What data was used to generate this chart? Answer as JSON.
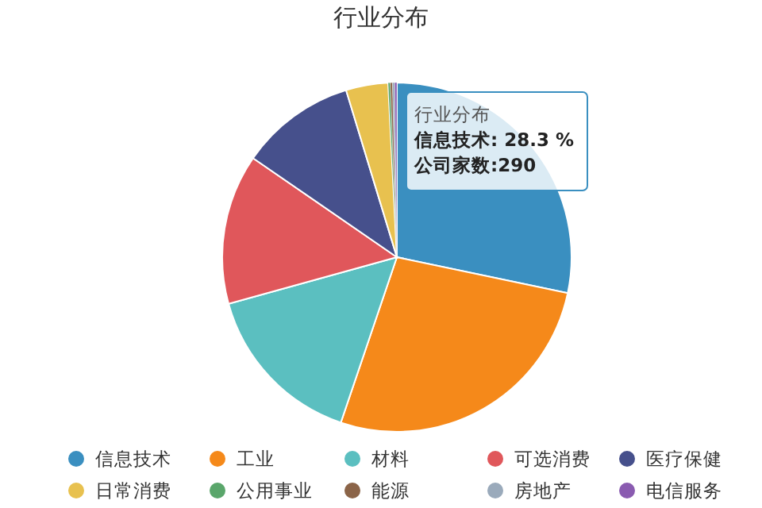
{
  "chart_data": {
    "type": "pie",
    "title": "行业分布",
    "categories": [
      "信息技术",
      "工业",
      "材料",
      "可选消费",
      "医疗保健",
      "日常消费",
      "公用事业",
      "能源",
      "房地产",
      "电信服务"
    ],
    "values": [
      28.3,
      26.9,
      15.5,
      13.9,
      10.7,
      3.9,
      0.2,
      0.2,
      0.2,
      0.2
    ],
    "colors": [
      "#3a8fc0",
      "#f5891a",
      "#5bbfc0",
      "#e0575b",
      "#46508c",
      "#e8c14f",
      "#5aa66b",
      "#8b6448",
      "#9aaabb",
      "#8a5bb0"
    ],
    "legend": "bottom",
    "annotations": [
      "行业分布",
      "信息技术: 28.3 %",
      "公司家数:290"
    ]
  }
}
